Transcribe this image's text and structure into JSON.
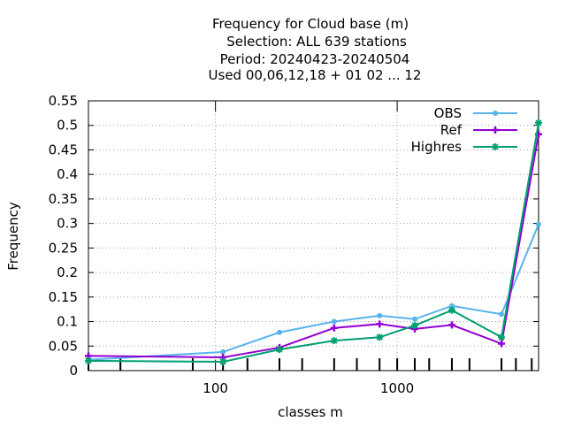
{
  "chart_data": {
    "type": "line",
    "title_lines": [
      "Frequency  for Cloud base (m)",
      "Selection: ALL    639 stations",
      "Period: 20240423-20240504",
      "Used  00,06,12,18 + 01 02 ... 12"
    ],
    "xlabel": "classes m",
    "ylabel": "Frequency",
    "x_scale": "log",
    "xlim": [
      20,
      6000
    ],
    "ylim": [
      0,
      0.55
    ],
    "y_ticks": [
      0,
      0.05,
      0.1,
      0.15,
      0.2,
      0.25,
      0.3,
      0.35,
      0.4,
      0.45,
      0.5,
      0.55
    ],
    "y_tick_labels": [
      "0",
      "0.05",
      "0.1",
      "0.15",
      "0.2",
      "0.25",
      "0.3",
      "0.35",
      "0.4",
      "0.45",
      "0.5",
      "0.55"
    ],
    "x_ticks": [
      100,
      1000
    ],
    "x_tick_labels": [
      "100",
      "1000"
    ],
    "x_class_marks": [
      20,
      30,
      75,
      110,
      150,
      225,
      300,
      450,
      600,
      800,
      1000,
      1250,
      1500,
      2000,
      2500,
      3750,
      4500,
      5500
    ],
    "grid": true,
    "legend_position": "top-right",
    "series": [
      {
        "name": "OBS",
        "color": "#56b4e9",
        "marker": "dot",
        "x": [
          20,
          110,
          225,
          450,
          800,
          1250,
          2000,
          3750,
          6000
        ],
        "y": [
          0.022,
          0.038,
          0.078,
          0.1,
          0.112,
          0.105,
          0.132,
          0.115,
          0.298
        ]
      },
      {
        "name": "Ref",
        "color": "#9400d3",
        "marker": "plus",
        "x": [
          20,
          110,
          225,
          450,
          800,
          1250,
          2000,
          3750,
          6000
        ],
        "y": [
          0.03,
          0.027,
          0.047,
          0.087,
          0.095,
          0.085,
          0.093,
          0.055,
          0.482
        ]
      },
      {
        "name": "Highres",
        "color": "#009e73",
        "marker": "star",
        "x": [
          20,
          110,
          225,
          450,
          800,
          1250,
          2000,
          3750,
          6000
        ],
        "y": [
          0.02,
          0.018,
          0.043,
          0.061,
          0.068,
          0.092,
          0.123,
          0.068,
          0.505
        ]
      }
    ]
  }
}
